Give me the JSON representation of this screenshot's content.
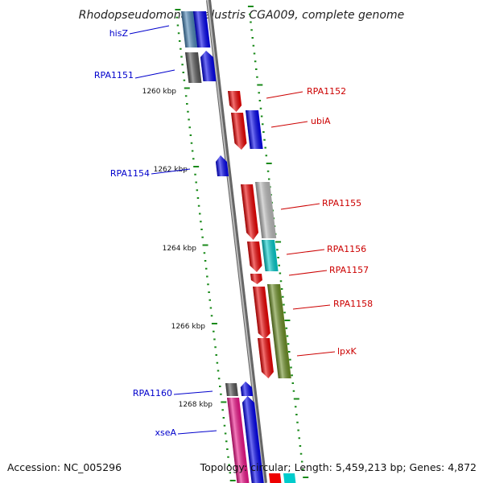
{
  "title": "Rhodopseudomonas palustris CGA009, complete genome",
  "accession": "Accession: NC_005296",
  "topology": "Topology: circular; Length: 5,459,213 bp; Genes: 4,872",
  "scale_labels": [
    "1260 kbp",
    "1262 kbp",
    "1264 kbp",
    "1266 kbp",
    "1268 kbp"
  ],
  "colors": {
    "blue_gene": "#0000ee",
    "red_gene": "#ee0000",
    "gray_gene": "#555555",
    "silver_gene": "#bbbbbb",
    "cyan_gene": "#00cccc",
    "olive_gene": "#6b8e23",
    "pink_gene": "#ee1188",
    "steel_gene": "#4682b4",
    "backbone": "#888888",
    "tick": "#1a8a1a",
    "label_blue": "#0000cc",
    "label_red": "#cc0000"
  },
  "gene_labels": [
    {
      "name": "hisZ",
      "color": "blue"
    },
    {
      "name": "RPA1151",
      "color": "blue"
    },
    {
      "name": "RPA1152",
      "color": "red"
    },
    {
      "name": "ubiA",
      "color": "red"
    },
    {
      "name": "RPA1154",
      "color": "blue"
    },
    {
      "name": "RPA1155",
      "color": "red"
    },
    {
      "name": "RPA1156",
      "color": "red"
    },
    {
      "name": "RPA1157",
      "color": "red"
    },
    {
      "name": "RPA1158",
      "color": "red"
    },
    {
      "name": "lpxK",
      "color": "red"
    },
    {
      "name": "RPA1160",
      "color": "blue"
    },
    {
      "name": "xseA",
      "color": "blue"
    }
  ]
}
